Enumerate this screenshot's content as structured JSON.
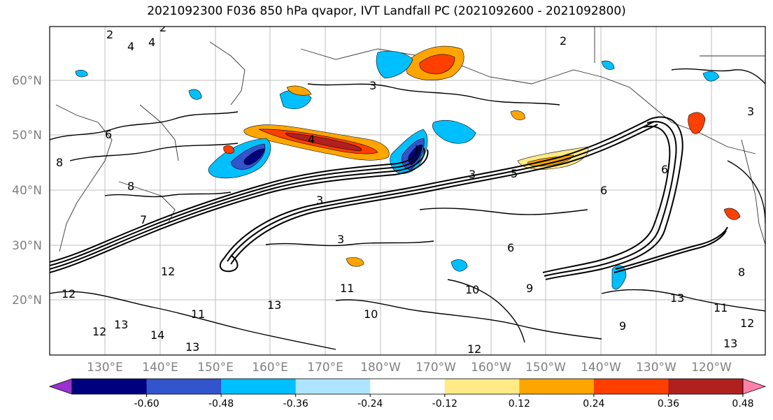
{
  "title": "2021092300 F036 850 hPa qvapor, IVT Landfall PC (2021092600 - 2021092800)",
  "lat_labels": [
    "60°N",
    "50°N",
    "40°N",
    "30°N",
    "20°N"
  ],
  "lon_labels": [
    "130°E",
    "140°E",
    "150°E",
    "160°E",
    "170°E",
    "180°W",
    "170°W",
    "160°W",
    "150°W",
    "140°W",
    "130°W",
    "120°W"
  ],
  "colorbar": {
    "colors": [
      "#9a31d0",
      "#00007f",
      "#3254cc",
      "#00bfff",
      "#aee4ff",
      "#ffffff",
      "#ffea85",
      "#ffa500",
      "#ff3f00",
      "#b0201e",
      "#ff81a9"
    ],
    "tick_labels": [
      "-0.60",
      "-0.48",
      "-0.36",
      "-0.24",
      "-0.12",
      "0.12",
      "0.24",
      "0.36",
      "0.48",
      "0.60"
    ]
  },
  "contour_labels": [
    "2",
    "4",
    "4",
    "2",
    "3",
    "3",
    "2",
    "3",
    "8",
    "8",
    "6",
    "4",
    "7",
    "3",
    "3",
    "5",
    "6",
    "11",
    "12",
    "11",
    "10",
    "10",
    "9",
    "12",
    "13",
    "12",
    "14",
    "13",
    "13",
    "13",
    "12",
    "9",
    "6",
    "11",
    "12",
    "13",
    "6",
    "8"
  ],
  "colors": {
    "grid": "#bfbfbf",
    "contour": "#000000",
    "axis_text": "#808080"
  }
}
